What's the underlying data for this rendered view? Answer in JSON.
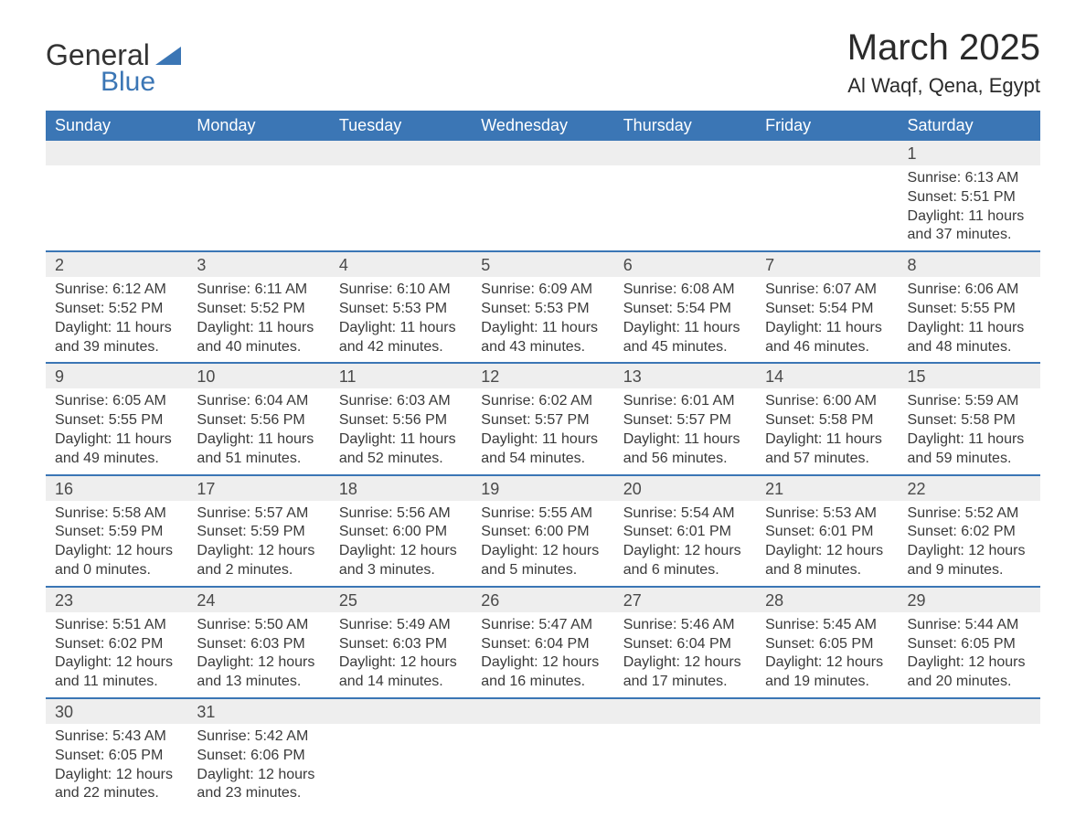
{
  "logo": {
    "text1": "General",
    "text2": "Blue"
  },
  "title": "March 2025",
  "location": "Al Waqf, Qena, Egypt",
  "colors": {
    "header_bg": "#3b76b5",
    "header_text": "#ffffff",
    "daynum_bg": "#eeeeee",
    "border_accent": "#3b76b5",
    "body_text": "#3a3a3a",
    "page_bg": "#ffffff"
  },
  "typography": {
    "title_fontsize": 40,
    "location_fontsize": 22,
    "weekday_fontsize": 18,
    "daynum_fontsize": 18,
    "cell_fontsize": 16
  },
  "weekdays": [
    "Sunday",
    "Monday",
    "Tuesday",
    "Wednesday",
    "Thursday",
    "Friday",
    "Saturday"
  ],
  "weeks": [
    [
      null,
      null,
      null,
      null,
      null,
      null,
      {
        "n": "1",
        "sr": "Sunrise: 6:13 AM",
        "ss": "Sunset: 5:51 PM",
        "d1": "Daylight: 11 hours",
        "d2": "and 37 minutes."
      }
    ],
    [
      {
        "n": "2",
        "sr": "Sunrise: 6:12 AM",
        "ss": "Sunset: 5:52 PM",
        "d1": "Daylight: 11 hours",
        "d2": "and 39 minutes."
      },
      {
        "n": "3",
        "sr": "Sunrise: 6:11 AM",
        "ss": "Sunset: 5:52 PM",
        "d1": "Daylight: 11 hours",
        "d2": "and 40 minutes."
      },
      {
        "n": "4",
        "sr": "Sunrise: 6:10 AM",
        "ss": "Sunset: 5:53 PM",
        "d1": "Daylight: 11 hours",
        "d2": "and 42 minutes."
      },
      {
        "n": "5",
        "sr": "Sunrise: 6:09 AM",
        "ss": "Sunset: 5:53 PM",
        "d1": "Daylight: 11 hours",
        "d2": "and 43 minutes."
      },
      {
        "n": "6",
        "sr": "Sunrise: 6:08 AM",
        "ss": "Sunset: 5:54 PM",
        "d1": "Daylight: 11 hours",
        "d2": "and 45 minutes."
      },
      {
        "n": "7",
        "sr": "Sunrise: 6:07 AM",
        "ss": "Sunset: 5:54 PM",
        "d1": "Daylight: 11 hours",
        "d2": "and 46 minutes."
      },
      {
        "n": "8",
        "sr": "Sunrise: 6:06 AM",
        "ss": "Sunset: 5:55 PM",
        "d1": "Daylight: 11 hours",
        "d2": "and 48 minutes."
      }
    ],
    [
      {
        "n": "9",
        "sr": "Sunrise: 6:05 AM",
        "ss": "Sunset: 5:55 PM",
        "d1": "Daylight: 11 hours",
        "d2": "and 49 minutes."
      },
      {
        "n": "10",
        "sr": "Sunrise: 6:04 AM",
        "ss": "Sunset: 5:56 PM",
        "d1": "Daylight: 11 hours",
        "d2": "and 51 minutes."
      },
      {
        "n": "11",
        "sr": "Sunrise: 6:03 AM",
        "ss": "Sunset: 5:56 PM",
        "d1": "Daylight: 11 hours",
        "d2": "and 52 minutes."
      },
      {
        "n": "12",
        "sr": "Sunrise: 6:02 AM",
        "ss": "Sunset: 5:57 PM",
        "d1": "Daylight: 11 hours",
        "d2": "and 54 minutes."
      },
      {
        "n": "13",
        "sr": "Sunrise: 6:01 AM",
        "ss": "Sunset: 5:57 PM",
        "d1": "Daylight: 11 hours",
        "d2": "and 56 minutes."
      },
      {
        "n": "14",
        "sr": "Sunrise: 6:00 AM",
        "ss": "Sunset: 5:58 PM",
        "d1": "Daylight: 11 hours",
        "d2": "and 57 minutes."
      },
      {
        "n": "15",
        "sr": "Sunrise: 5:59 AM",
        "ss": "Sunset: 5:58 PM",
        "d1": "Daylight: 11 hours",
        "d2": "and 59 minutes."
      }
    ],
    [
      {
        "n": "16",
        "sr": "Sunrise: 5:58 AM",
        "ss": "Sunset: 5:59 PM",
        "d1": "Daylight: 12 hours",
        "d2": "and 0 minutes."
      },
      {
        "n": "17",
        "sr": "Sunrise: 5:57 AM",
        "ss": "Sunset: 5:59 PM",
        "d1": "Daylight: 12 hours",
        "d2": "and 2 minutes."
      },
      {
        "n": "18",
        "sr": "Sunrise: 5:56 AM",
        "ss": "Sunset: 6:00 PM",
        "d1": "Daylight: 12 hours",
        "d2": "and 3 minutes."
      },
      {
        "n": "19",
        "sr": "Sunrise: 5:55 AM",
        "ss": "Sunset: 6:00 PM",
        "d1": "Daylight: 12 hours",
        "d2": "and 5 minutes."
      },
      {
        "n": "20",
        "sr": "Sunrise: 5:54 AM",
        "ss": "Sunset: 6:01 PM",
        "d1": "Daylight: 12 hours",
        "d2": "and 6 minutes."
      },
      {
        "n": "21",
        "sr": "Sunrise: 5:53 AM",
        "ss": "Sunset: 6:01 PM",
        "d1": "Daylight: 12 hours",
        "d2": "and 8 minutes."
      },
      {
        "n": "22",
        "sr": "Sunrise: 5:52 AM",
        "ss": "Sunset: 6:02 PM",
        "d1": "Daylight: 12 hours",
        "d2": "and 9 minutes."
      }
    ],
    [
      {
        "n": "23",
        "sr": "Sunrise: 5:51 AM",
        "ss": "Sunset: 6:02 PM",
        "d1": "Daylight: 12 hours",
        "d2": "and 11 minutes."
      },
      {
        "n": "24",
        "sr": "Sunrise: 5:50 AM",
        "ss": "Sunset: 6:03 PM",
        "d1": "Daylight: 12 hours",
        "d2": "and 13 minutes."
      },
      {
        "n": "25",
        "sr": "Sunrise: 5:49 AM",
        "ss": "Sunset: 6:03 PM",
        "d1": "Daylight: 12 hours",
        "d2": "and 14 minutes."
      },
      {
        "n": "26",
        "sr": "Sunrise: 5:47 AM",
        "ss": "Sunset: 6:04 PM",
        "d1": "Daylight: 12 hours",
        "d2": "and 16 minutes."
      },
      {
        "n": "27",
        "sr": "Sunrise: 5:46 AM",
        "ss": "Sunset: 6:04 PM",
        "d1": "Daylight: 12 hours",
        "d2": "and 17 minutes."
      },
      {
        "n": "28",
        "sr": "Sunrise: 5:45 AM",
        "ss": "Sunset: 6:05 PM",
        "d1": "Daylight: 12 hours",
        "d2": "and 19 minutes."
      },
      {
        "n": "29",
        "sr": "Sunrise: 5:44 AM",
        "ss": "Sunset: 6:05 PM",
        "d1": "Daylight: 12 hours",
        "d2": "and 20 minutes."
      }
    ],
    [
      {
        "n": "30",
        "sr": "Sunrise: 5:43 AM",
        "ss": "Sunset: 6:05 PM",
        "d1": "Daylight: 12 hours",
        "d2": "and 22 minutes."
      },
      {
        "n": "31",
        "sr": "Sunrise: 5:42 AM",
        "ss": "Sunset: 6:06 PM",
        "d1": "Daylight: 12 hours",
        "d2": "and 23 minutes."
      },
      null,
      null,
      null,
      null,
      null
    ]
  ]
}
